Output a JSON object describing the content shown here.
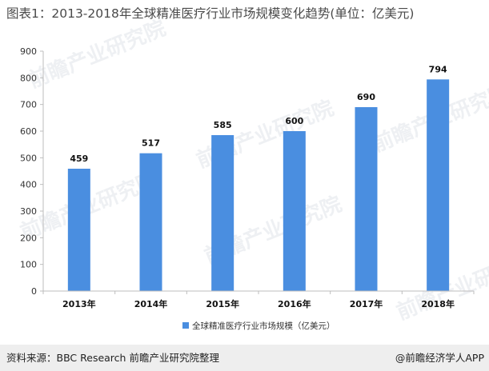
{
  "title": "图表1：2013-2018年全球精准医疗行业市场规模变化趋势(单位：亿美元)",
  "footer": {
    "source": "资料来源：BBC Research 前瞻产业研究院整理",
    "brand": "@前瞻经济学人APP"
  },
  "watermark": {
    "text": "前瞻产业研究院"
  },
  "colors": {
    "bar": "#4a8ee0",
    "axis": "#bdbdbd",
    "footer_bg": "#eeeeee"
  },
  "chart_data": {
    "type": "bar",
    "title": "",
    "categories": [
      "2013年",
      "2014年",
      "2015年",
      "2016年",
      "2017年",
      "2018年"
    ],
    "series": [
      {
        "name": "全球精准医疗行业市场规模（亿美元）",
        "values": [
          459,
          517,
          585,
          600,
          690,
          794
        ]
      }
    ],
    "data_labels": [
      "459",
      "517",
      "585",
      "600",
      "690",
      "794"
    ],
    "y_ticks": [
      "0",
      "100",
      "200",
      "300",
      "400",
      "500",
      "600",
      "700",
      "800",
      "900"
    ],
    "ylim": [
      0,
      900
    ],
    "xlabel": "",
    "ylabel": "",
    "grid": false,
    "legend_position": "bottom-center"
  }
}
